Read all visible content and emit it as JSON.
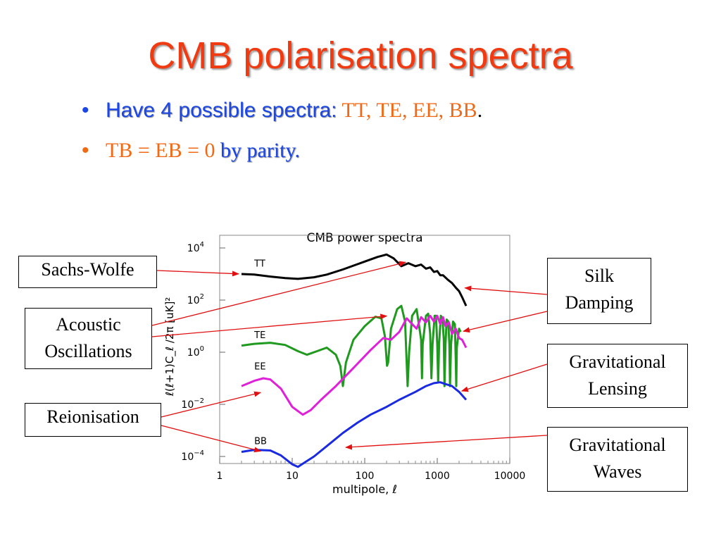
{
  "slide": {
    "title": "CMB polarisation spectra",
    "bullet1": {
      "lead": "Have 4 possible spectra:",
      "list": " TT, TE, EE, BB",
      "end": "."
    },
    "bullet2": {
      "lead": "TB = EB = 0 ",
      "rest": "by parity."
    },
    "bullet_symbol": "•"
  },
  "callouts": {
    "sachs_wolfe": "Sachs-Wolfe",
    "acoustic": [
      "Acoustic",
      "Oscillations"
    ],
    "reionisation": "Reionisation",
    "silk": [
      "Silk",
      "Damping"
    ],
    "lensing": [
      "Gravitational",
      "Lensing"
    ],
    "waves": [
      "Gravitational",
      "Waves"
    ]
  },
  "colors": {
    "title": "#f03a12",
    "text_blue": "#1a47e6",
    "text_orange": "#f06a16",
    "arrow": "#e01010"
  },
  "chart_data": {
    "type": "line",
    "title": "CMB power spectra",
    "xlabel": "multipole, ℓ",
    "ylabel": "ℓ(ℓ+1)C_ℓ /2π  [uK]²",
    "x_scale": "log",
    "y_scale": "log",
    "xlim": [
      1,
      10000
    ],
    "ylim": [
      0.0001,
      10000
    ],
    "x_ticks": [
      {
        "v": 1,
        "label": "1"
      },
      {
        "v": 10,
        "label": "10"
      },
      {
        "v": 100,
        "label": "100"
      },
      {
        "v": 1000,
        "label": "1000"
      },
      {
        "v": 10000,
        "label": "10000"
      }
    ],
    "y_ticks": [
      {
        "v": 10000,
        "base": "10",
        "exp": "4"
      },
      {
        "v": 100,
        "base": "10",
        "exp": "2"
      },
      {
        "v": 1,
        "base": "10",
        "exp": "0"
      },
      {
        "v": 0.01,
        "base": "10",
        "exp": "−2"
      },
      {
        "v": 0.0001,
        "base": "10",
        "exp": "−4"
      }
    ],
    "series": [
      {
        "name": "TT",
        "color": "#000000",
        "points": [
          [
            2,
            1000
          ],
          [
            3,
            950
          ],
          [
            5,
            800
          ],
          [
            8,
            700
          ],
          [
            12,
            650
          ],
          [
            20,
            750
          ],
          [
            30,
            950
          ],
          [
            50,
            1500
          ],
          [
            100,
            3000
          ],
          [
            150,
            4500
          ],
          [
            200,
            5600
          ],
          [
            250,
            4000
          ],
          [
            320,
            2000
          ],
          [
            400,
            2600
          ],
          [
            500,
            2000
          ],
          [
            600,
            2300
          ],
          [
            700,
            1600
          ],
          [
            800,
            1800
          ],
          [
            900,
            1200
          ],
          [
            1000,
            1300
          ],
          [
            1100,
            900
          ],
          [
            1200,
            900
          ],
          [
            1400,
            600
          ],
          [
            1600,
            450
          ],
          [
            1800,
            300
          ],
          [
            2000,
            220
          ],
          [
            2200,
            130
          ],
          [
            2500,
            60
          ]
        ]
      },
      {
        "name": "TE",
        "color": "#1f9a1f",
        "points": [
          [
            2,
            1.8
          ],
          [
            3,
            2.1
          ],
          [
            5,
            2.3
          ],
          [
            8,
            1.9
          ],
          [
            12,
            1.1
          ],
          [
            16,
            0.8
          ],
          [
            22,
            1.1
          ],
          [
            30,
            1.5
          ],
          [
            40,
            0.8
          ],
          [
            46,
            0.3
          ],
          [
            50,
            0.05
          ],
          [
            55,
            0.4
          ],
          [
            70,
            3
          ],
          [
            100,
            10
          ],
          [
            140,
            23
          ],
          [
            170,
            20
          ],
          [
            190,
            4
          ],
          [
            203,
            0.3
          ],
          [
            210,
            0.4
          ],
          [
            230,
            8
          ],
          [
            280,
            45
          ],
          [
            320,
            60
          ],
          [
            360,
            15
          ],
          [
            390,
            0.05
          ],
          [
            410,
            1
          ],
          [
            450,
            25
          ],
          [
            520,
            45
          ],
          [
            600,
            3
          ],
          [
            615,
            0.1
          ],
          [
            630,
            2
          ],
          [
            700,
            25
          ],
          [
            750,
            30
          ],
          [
            800,
            5
          ],
          [
            830,
            0.1
          ],
          [
            860,
            2
          ],
          [
            920,
            25
          ],
          [
            960,
            25
          ],
          [
            1000,
            2
          ],
          [
            1030,
            0.07
          ],
          [
            1060,
            2
          ],
          [
            1120,
            25
          ],
          [
            1180,
            20
          ],
          [
            1230,
            3
          ],
          [
            1260,
            0.05
          ],
          [
            1300,
            2
          ],
          [
            1350,
            18
          ],
          [
            1420,
            15
          ],
          [
            1470,
            2
          ],
          [
            1500,
            0.05
          ],
          [
            1550,
            2
          ],
          [
            1650,
            15
          ],
          [
            1750,
            12
          ],
          [
            1800,
            0.5
          ],
          [
            1830,
            0.05
          ],
          [
            1860,
            1.5
          ],
          [
            2000,
            8
          ],
          [
            2100,
            6
          ]
        ]
      },
      {
        "name": "EE",
        "color": "#e020d8",
        "points": [
          [
            2,
            0.05
          ],
          [
            3,
            0.08
          ],
          [
            4,
            0.1
          ],
          [
            5,
            0.09
          ],
          [
            7,
            0.04
          ],
          [
            10,
            0.008
          ],
          [
            14,
            0.004
          ],
          [
            18,
            0.006
          ],
          [
            25,
            0.015
          ],
          [
            40,
            0.05
          ],
          [
            70,
            0.25
          ],
          [
            120,
            1.2
          ],
          [
            180,
            3.5
          ],
          [
            230,
            3
          ],
          [
            300,
            6
          ],
          [
            380,
            20
          ],
          [
            450,
            12
          ],
          [
            520,
            8
          ],
          [
            600,
            22
          ],
          [
            700,
            14
          ],
          [
            800,
            25
          ],
          [
            900,
            15
          ],
          [
            1000,
            25
          ],
          [
            1100,
            12
          ],
          [
            1200,
            22
          ],
          [
            1300,
            10
          ],
          [
            1450,
            14
          ],
          [
            1600,
            5
          ],
          [
            1800,
            8
          ],
          [
            2000,
            3.5
          ],
          [
            2200,
            3
          ],
          [
            2500,
            1.5
          ]
        ]
      },
      {
        "name": "BB",
        "color": "#1a2ae0",
        "points": [
          [
            2,
            0.00015
          ],
          [
            3,
            0.00018
          ],
          [
            5,
            0.00017
          ],
          [
            7,
            0.00011
          ],
          [
            10,
            5e-05
          ],
          [
            12,
            4e-05
          ],
          [
            15,
            6e-05
          ],
          [
            20,
            0.0001
          ],
          [
            30,
            0.00025
          ],
          [
            50,
            0.0008
          ],
          [
            80,
            0.002
          ],
          [
            120,
            0.004
          ],
          [
            200,
            0.008
          ],
          [
            300,
            0.015
          ],
          [
            500,
            0.03
          ],
          [
            700,
            0.05
          ],
          [
            900,
            0.065
          ],
          [
            1100,
            0.07
          ],
          [
            1300,
            0.06
          ],
          [
            1600,
            0.05
          ],
          [
            2000,
            0.03
          ],
          [
            2500,
            0.015
          ]
        ]
      }
    ],
    "series_labels": [
      {
        "text": "TT",
        "x": 3,
        "y": 1900
      },
      {
        "text": "TE",
        "x": 3,
        "y": 3.5
      },
      {
        "text": "EE",
        "x": 3,
        "y": 0.22
      },
      {
        "text": "BB",
        "x": 3,
        "y": 0.0003
      }
    ],
    "annotations": [
      {
        "label": "Sachs-Wolfe",
        "target_x": 2,
        "target_y": 1000
      },
      {
        "label": "Acoustic Oscillations",
        "target_x": 400,
        "target_y": 3000
      },
      {
        "label": "Acoustic Oscillations",
        "target_x": 220,
        "target_y": 25
      },
      {
        "label": "Silk Damping",
        "target_x": 2200,
        "target_y": 300
      },
      {
        "label": "Silk Damping",
        "target_x": 2100,
        "target_y": 6
      },
      {
        "label": "Gravitational Lensing",
        "target_x": 2000,
        "target_y": 0.03
      },
      {
        "label": "Reionisation",
        "target_x": 4,
        "target_y": 0.03
      },
      {
        "label": "Reionisation",
        "target_x": 4,
        "target_y": 0.00015
      },
      {
        "label": "Gravitational Waves",
        "target_x": 50,
        "target_y": 0.00022
      }
    ]
  }
}
